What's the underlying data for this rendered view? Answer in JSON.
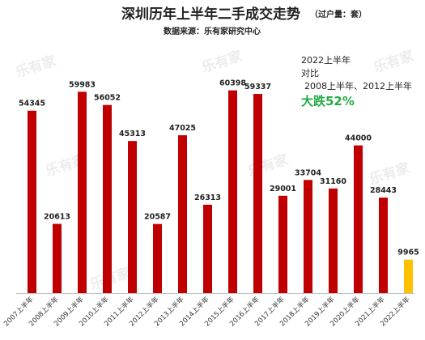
{
  "title": "深圳历年上半年二手成交走势",
  "unit": "（过户量：套）",
  "subtitle": "数据来源：乐有家研究中心",
  "annotation": {
    "line1": "2022上半年",
    "line2": "对比",
    "line3": "2008上半年、2012上半年",
    "highlight": "大跌52%"
  },
  "watermark": "乐有家",
  "colors": {
    "bar": "#c00000",
    "highlight_bar": "#ffc000",
    "highlight_text": "#22aa44"
  },
  "chart_data": {
    "type": "bar",
    "title": "深圳历年上半年二手成交走势",
    "categories": [
      "2007上半年",
      "2008上半年",
      "2009上半年",
      "2010上半年",
      "2011上半年",
      "2012上半年",
      "2013上半年",
      "2014上半年",
      "2015上半年",
      "2016上半年",
      "2017上半年",
      "2018上半年",
      "2019上半年",
      "2020上半年",
      "2021上半年",
      "2022上半年"
    ],
    "values": [
      54345,
      20613,
      59983,
      56052,
      45313,
      20587,
      47025,
      26313,
      60398,
      59337,
      29001,
      33704,
      31160,
      44000,
      28443,
      9965
    ],
    "ylim": [
      0,
      62000
    ],
    "highlight_index": 15,
    "data_labels": true,
    "grid": false,
    "xlabel": "",
    "ylabel": ""
  }
}
